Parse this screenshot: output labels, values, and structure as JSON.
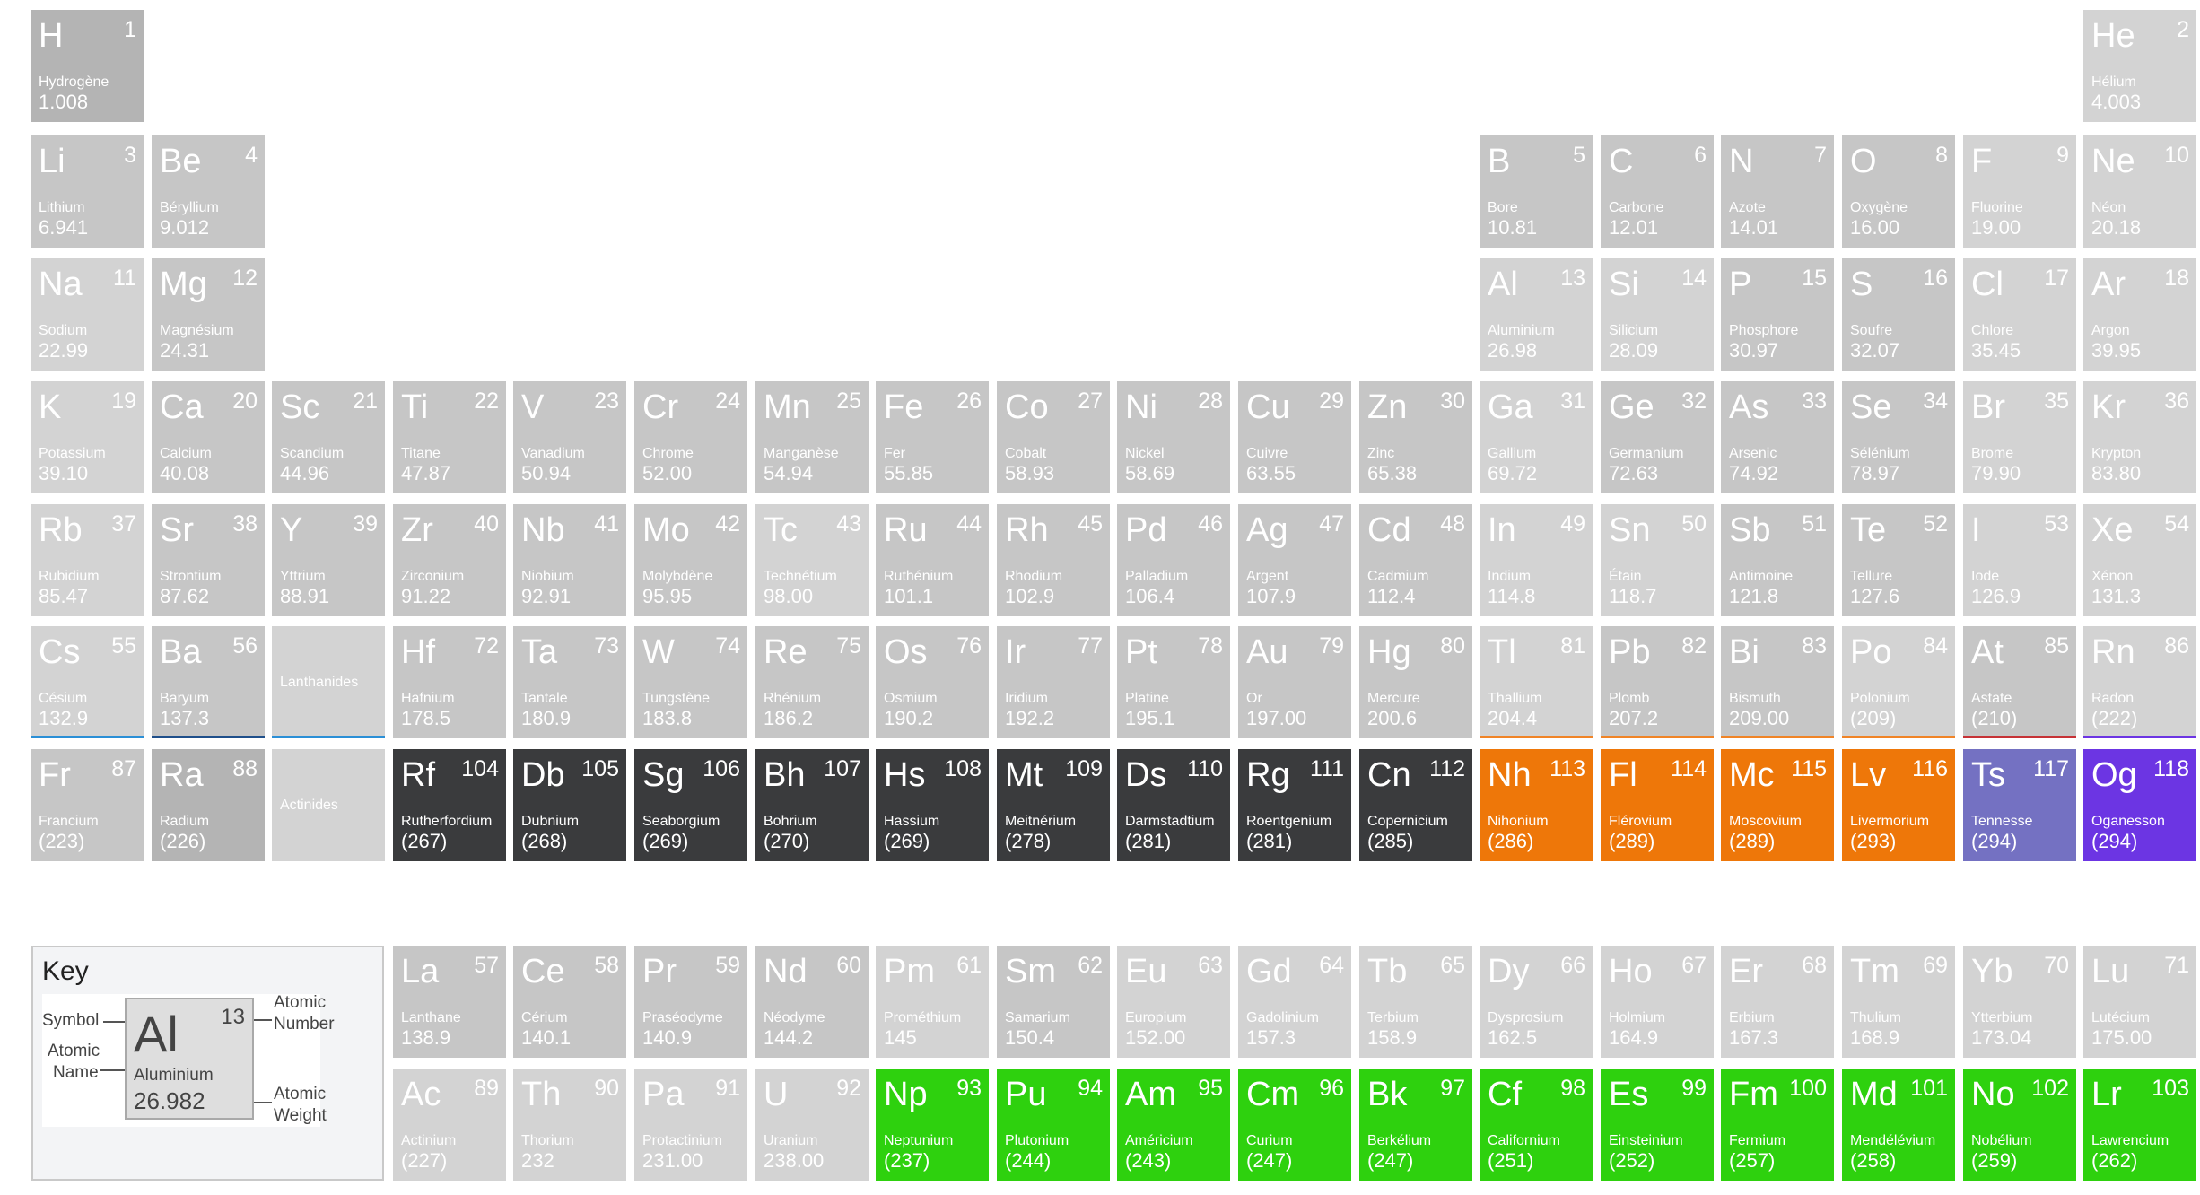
{
  "colors": {
    "cell_light": "#d3d3d3",
    "cell_mid": "#c6c6c6",
    "cell_dark": "#b4b4b4",
    "superheavy": "#3a3b3d",
    "nihonium_group": "#ee7709",
    "tennessine": "#7471c2",
    "oganesson": "#6c35e3",
    "actinide_green": "#2ed10e",
    "underline_blue": "#2b8fd6",
    "underline_navy": "#1f4f8a",
    "underline_orange": "#f08427",
    "underline_red": "#c63236",
    "underline_purple": "#6c35e3"
  },
  "series_labels": {
    "lanthanides": "Lanthanides",
    "actinides": "Actinides"
  },
  "elements": [
    {
      "n": 1,
      "s": "H",
      "name": "Hydrogène",
      "w": "1.008",
      "col": 1,
      "row": 1,
      "style": "dark"
    },
    {
      "n": 2,
      "s": "He",
      "name": "Hélium",
      "w": "4.003",
      "col": 18,
      "row": 1,
      "style": "light"
    },
    {
      "n": 3,
      "s": "Li",
      "name": "Lithium",
      "w": "6.941",
      "col": 1,
      "row": 2,
      "style": "mid"
    },
    {
      "n": 4,
      "s": "Be",
      "name": "Béryllium",
      "w": "9.012",
      "col": 2,
      "row": 2,
      "style": "mid"
    },
    {
      "n": 5,
      "s": "B",
      "name": "Bore",
      "w": "10.81",
      "col": 13,
      "row": 2,
      "style": "mid"
    },
    {
      "n": 6,
      "s": "C",
      "name": "Carbone",
      "w": "12.01",
      "col": 14,
      "row": 2,
      "style": "mid"
    },
    {
      "n": 7,
      "s": "N",
      "name": "Azote",
      "w": "14.01",
      "col": 15,
      "row": 2,
      "style": "mid"
    },
    {
      "n": 8,
      "s": "O",
      "name": "Oxygène",
      "w": "16.00",
      "col": 16,
      "row": 2,
      "style": "mid"
    },
    {
      "n": 9,
      "s": "F",
      "name": "Fluorine",
      "w": "19.00",
      "col": 17,
      "row": 2,
      "style": "light"
    },
    {
      "n": 10,
      "s": "Ne",
      "name": "Néon",
      "w": "20.18",
      "col": 18,
      "row": 2,
      "style": "light"
    },
    {
      "n": 11,
      "s": "Na",
      "name": "Sodium",
      "w": "22.99",
      "col": 1,
      "row": 3,
      "style": "light"
    },
    {
      "n": 12,
      "s": "Mg",
      "name": "Magnésium",
      "w": "24.31",
      "col": 2,
      "row": 3,
      "style": "mid"
    },
    {
      "n": 13,
      "s": "Al",
      "name": "Aluminium",
      "w": "26.98",
      "col": 13,
      "row": 3,
      "style": "light"
    },
    {
      "n": 14,
      "s": "Si",
      "name": "Silicium",
      "w": "28.09",
      "col": 14,
      "row": 3,
      "style": "light"
    },
    {
      "n": 15,
      "s": "P",
      "name": "Phosphore",
      "w": "30.97",
      "col": 15,
      "row": 3,
      "style": "mid"
    },
    {
      "n": 16,
      "s": "S",
      "name": "Soufre",
      "w": "32.07",
      "col": 16,
      "row": 3,
      "style": "mid"
    },
    {
      "n": 17,
      "s": "Cl",
      "name": "Chlore",
      "w": "35.45",
      "col": 17,
      "row": 3,
      "style": "light"
    },
    {
      "n": 18,
      "s": "Ar",
      "name": "Argon",
      "w": "39.95",
      "col": 18,
      "row": 3,
      "style": "light"
    },
    {
      "n": 19,
      "s": "K",
      "name": "Potassium",
      "w": "39.10",
      "col": 1,
      "row": 4,
      "style": "light"
    },
    {
      "n": 20,
      "s": "Ca",
      "name": "Calcium",
      "w": "40.08",
      "col": 2,
      "row": 4,
      "style": "mid"
    },
    {
      "n": 21,
      "s": "Sc",
      "name": "Scandium",
      "w": "44.96",
      "col": 3,
      "row": 4,
      "style": "mid"
    },
    {
      "n": 22,
      "s": "Ti",
      "name": "Titane",
      "w": "47.87",
      "col": 4,
      "row": 4,
      "style": "mid"
    },
    {
      "n": 23,
      "s": "V",
      "name": "Vanadium",
      "w": "50.94",
      "col": 5,
      "row": 4,
      "style": "mid"
    },
    {
      "n": 24,
      "s": "Cr",
      "name": "Chrome",
      "w": "52.00",
      "col": 6,
      "row": 4,
      "style": "mid"
    },
    {
      "n": 25,
      "s": "Mn",
      "name": "Manganèse",
      "w": "54.94",
      "col": 7,
      "row": 4,
      "style": "mid"
    },
    {
      "n": 26,
      "s": "Fe",
      "name": "Fer",
      "w": "55.85",
      "col": 8,
      "row": 4,
      "style": "mid"
    },
    {
      "n": 27,
      "s": "Co",
      "name": "Cobalt",
      "w": "58.93",
      "col": 9,
      "row": 4,
      "style": "mid"
    },
    {
      "n": 28,
      "s": "Ni",
      "name": "Nickel",
      "w": "58.69",
      "col": 10,
      "row": 4,
      "style": "mid"
    },
    {
      "n": 29,
      "s": "Cu",
      "name": "Cuivre",
      "w": "63.55",
      "col": 11,
      "row": 4,
      "style": "mid"
    },
    {
      "n": 30,
      "s": "Zn",
      "name": "Zinc",
      "w": "65.38",
      "col": 12,
      "row": 4,
      "style": "mid"
    },
    {
      "n": 31,
      "s": "Ga",
      "name": "Gallium",
      "w": "69.72",
      "col": 13,
      "row": 4,
      "style": "light"
    },
    {
      "n": 32,
      "s": "Ge",
      "name": "Germanium",
      "w": "72.63",
      "col": 14,
      "row": 4,
      "style": "mid"
    },
    {
      "n": 33,
      "s": "As",
      "name": "Arsenic",
      "w": "74.92",
      "col": 15,
      "row": 4,
      "style": "mid"
    },
    {
      "n": 34,
      "s": "Se",
      "name": "Sélénium",
      "w": "78.97",
      "col": 16,
      "row": 4,
      "style": "mid"
    },
    {
      "n": 35,
      "s": "Br",
      "name": "Brome",
      "w": "79.90",
      "col": 17,
      "row": 4,
      "style": "light"
    },
    {
      "n": 36,
      "s": "Kr",
      "name": "Krypton",
      "w": "83.80",
      "col": 18,
      "row": 4,
      "style": "light"
    },
    {
      "n": 37,
      "s": "Rb",
      "name": "Rubidium",
      "w": "85.47",
      "col": 1,
      "row": 5,
      "style": "light"
    },
    {
      "n": 38,
      "s": "Sr",
      "name": "Strontium",
      "w": "87.62",
      "col": 2,
      "row": 5,
      "style": "mid"
    },
    {
      "n": 39,
      "s": "Y",
      "name": "Yttrium",
      "w": "88.91",
      "col": 3,
      "row": 5,
      "style": "mid"
    },
    {
      "n": 40,
      "s": "Zr",
      "name": "Zirconium",
      "w": "91.22",
      "col": 4,
      "row": 5,
      "style": "mid"
    },
    {
      "n": 41,
      "s": "Nb",
      "name": "Niobium",
      "w": "92.91",
      "col": 5,
      "row": 5,
      "style": "mid"
    },
    {
      "n": 42,
      "s": "Mo",
      "name": "Molybdène",
      "w": "95.95",
      "col": 6,
      "row": 5,
      "style": "mid"
    },
    {
      "n": 43,
      "s": "Tc",
      "name": "Technétium",
      "w": "98.00",
      "col": 7,
      "row": 5,
      "style": "light"
    },
    {
      "n": 44,
      "s": "Ru",
      "name": "Ruthénium",
      "w": "101.1",
      "col": 8,
      "row": 5,
      "style": "mid"
    },
    {
      "n": 45,
      "s": "Rh",
      "name": "Rhodium",
      "w": "102.9",
      "col": 9,
      "row": 5,
      "style": "mid"
    },
    {
      "n": 46,
      "s": "Pd",
      "name": "Palladium",
      "w": "106.4",
      "col": 10,
      "row": 5,
      "style": "mid"
    },
    {
      "n": 47,
      "s": "Ag",
      "name": "Argent",
      "w": "107.9",
      "col": 11,
      "row": 5,
      "style": "mid"
    },
    {
      "n": 48,
      "s": "Cd",
      "name": "Cadmium",
      "w": "112.4",
      "col": 12,
      "row": 5,
      "style": "mid"
    },
    {
      "n": 49,
      "s": "In",
      "name": "Indium",
      "w": "114.8",
      "col": 13,
      "row": 5,
      "style": "light"
    },
    {
      "n": 50,
      "s": "Sn",
      "name": "Étain",
      "w": "118.7",
      "col": 14,
      "row": 5,
      "style": "light"
    },
    {
      "n": 51,
      "s": "Sb",
      "name": "Antimoine",
      "w": "121.8",
      "col": 15,
      "row": 5,
      "style": "mid"
    },
    {
      "n": 52,
      "s": "Te",
      "name": "Tellure",
      "w": "127.6",
      "col": 16,
      "row": 5,
      "style": "mid"
    },
    {
      "n": 53,
      "s": "I",
      "name": "Iode",
      "w": "126.9",
      "col": 17,
      "row": 5,
      "style": "light"
    },
    {
      "n": 54,
      "s": "Xe",
      "name": "Xénon",
      "w": "131.3",
      "col": 18,
      "row": 5,
      "style": "light"
    },
    {
      "n": 55,
      "s": "Cs",
      "name": "Césium",
      "w": "132.9",
      "col": 1,
      "row": 6,
      "style": "light",
      "ul": "underline_blue"
    },
    {
      "n": 56,
      "s": "Ba",
      "name": "Baryum",
      "w": "137.3",
      "col": 2,
      "row": 6,
      "style": "mid",
      "ul": "underline_navy"
    },
    {
      "n": 72,
      "s": "Hf",
      "name": "Hafnium",
      "w": "178.5",
      "col": 4,
      "row": 6,
      "style": "mid"
    },
    {
      "n": 73,
      "s": "Ta",
      "name": "Tantale",
      "w": "180.9",
      "col": 5,
      "row": 6,
      "style": "mid"
    },
    {
      "n": 74,
      "s": "W",
      "name": "Tungstène",
      "w": "183.8",
      "col": 6,
      "row": 6,
      "style": "mid"
    },
    {
      "n": 75,
      "s": "Re",
      "name": "Rhénium",
      "w": "186.2",
      "col": 7,
      "row": 6,
      "style": "mid"
    },
    {
      "n": 76,
      "s": "Os",
      "name": "Osmium",
      "w": "190.2",
      "col": 8,
      "row": 6,
      "style": "mid"
    },
    {
      "n": 77,
      "s": "Ir",
      "name": "Iridium",
      "w": "192.2",
      "col": 9,
      "row": 6,
      "style": "mid"
    },
    {
      "n": 78,
      "s": "Pt",
      "name": "Platine",
      "w": "195.1",
      "col": 10,
      "row": 6,
      "style": "mid"
    },
    {
      "n": 79,
      "s": "Au",
      "name": "Or",
      "w": "197.00",
      "col": 11,
      "row": 6,
      "style": "mid"
    },
    {
      "n": 80,
      "s": "Hg",
      "name": "Mercure",
      "w": "200.6",
      "col": 12,
      "row": 6,
      "style": "mid"
    },
    {
      "n": 81,
      "s": "Tl",
      "name": "Thallium",
      "w": "204.4",
      "col": 13,
      "row": 6,
      "style": "light",
      "ul": "underline_orange"
    },
    {
      "n": 82,
      "s": "Pb",
      "name": "Plomb",
      "w": "207.2",
      "col": 14,
      "row": 6,
      "style": "mid",
      "ul": "underline_orange"
    },
    {
      "n": 83,
      "s": "Bi",
      "name": "Bismuth",
      "w": "209.00",
      "col": 15,
      "row": 6,
      "style": "mid",
      "ul": "underline_orange"
    },
    {
      "n": 84,
      "s": "Po",
      "name": "Polonium",
      "w": "(209)",
      "col": 16,
      "row": 6,
      "style": "light",
      "ul": "underline_orange"
    },
    {
      "n": 85,
      "s": "At",
      "name": "Astate",
      "w": "(210)",
      "col": 17,
      "row": 6,
      "style": "mid",
      "ul": "underline_red"
    },
    {
      "n": 86,
      "s": "Rn",
      "name": "Radon",
      "w": "(222)",
      "col": 18,
      "row": 6,
      "style": "light",
      "ul": "underline_purple"
    },
    {
      "n": 87,
      "s": "Fr",
      "name": "Francium",
      "w": "(223)",
      "col": 1,
      "row": 7,
      "style": "mid"
    },
    {
      "n": 88,
      "s": "Ra",
      "name": "Radium",
      "w": "(226)",
      "col": 2,
      "row": 7,
      "style": "dark"
    },
    {
      "n": 104,
      "s": "Rf",
      "name": "Rutherfordium",
      "w": "(267)",
      "col": 4,
      "row": 7,
      "style": "superheavy"
    },
    {
      "n": 105,
      "s": "Db",
      "name": "Dubnium",
      "w": "(268)",
      "col": 5,
      "row": 7,
      "style": "superheavy"
    },
    {
      "n": 106,
      "s": "Sg",
      "name": "Seaborgium",
      "w": "(269)",
      "col": 6,
      "row": 7,
      "style": "superheavy"
    },
    {
      "n": 107,
      "s": "Bh",
      "name": "Bohrium",
      "w": "(270)",
      "col": 7,
      "row": 7,
      "style": "superheavy"
    },
    {
      "n": 108,
      "s": "Hs",
      "name": "Hassium",
      "w": "(269)",
      "col": 8,
      "row": 7,
      "style": "superheavy"
    },
    {
      "n": 109,
      "s": "Mt",
      "name": "Meitnérium",
      "w": "(278)",
      "col": 9,
      "row": 7,
      "style": "superheavy"
    },
    {
      "n": 110,
      "s": "Ds",
      "name": "Darmstadtium",
      "w": "(281)",
      "col": 10,
      "row": 7,
      "style": "superheavy"
    },
    {
      "n": 111,
      "s": "Rg",
      "name": "Roentgenium",
      "w": "(281)",
      "col": 11,
      "row": 7,
      "style": "superheavy"
    },
    {
      "n": 112,
      "s": "Cn",
      "name": "Copernicium",
      "w": "(285)",
      "col": 12,
      "row": 7,
      "style": "superheavy"
    },
    {
      "n": 113,
      "s": "Nh",
      "name": "Nihonium",
      "w": "(286)",
      "col": 13,
      "row": 7,
      "style": "nihonium_group"
    },
    {
      "n": 114,
      "s": "Fl",
      "name": "Flérovium",
      "w": "(289)",
      "col": 14,
      "row": 7,
      "style": "nihonium_group"
    },
    {
      "n": 115,
      "s": "Mc",
      "name": "Moscovium",
      "w": "(289)",
      "col": 15,
      "row": 7,
      "style": "nihonium_group"
    },
    {
      "n": 116,
      "s": "Lv",
      "name": "Livermorium",
      "w": "(293)",
      "col": 16,
      "row": 7,
      "style": "nihonium_group"
    },
    {
      "n": 117,
      "s": "Ts",
      "name": "Tennesse",
      "w": "(294)",
      "col": 17,
      "row": 7,
      "style": "tennessine"
    },
    {
      "n": 118,
      "s": "Og",
      "name": "Oganesson",
      "w": "(294)",
      "col": 18,
      "row": 7,
      "style": "oganesson"
    },
    {
      "n": 57,
      "s": "La",
      "name": "Lanthane",
      "w": "138.9",
      "col": 4,
      "row": 9,
      "style": "mid"
    },
    {
      "n": 58,
      "s": "Ce",
      "name": "Cérium",
      "w": "140.1",
      "col": 5,
      "row": 9,
      "style": "mid"
    },
    {
      "n": 59,
      "s": "Pr",
      "name": "Praséodyme",
      "w": "140.9",
      "col": 6,
      "row": 9,
      "style": "mid"
    },
    {
      "n": 60,
      "s": "Nd",
      "name": "Néodyme",
      "w": "144.2",
      "col": 7,
      "row": 9,
      "style": "mid"
    },
    {
      "n": 61,
      "s": "Pm",
      "name": "Prométhium",
      "w": "145",
      "col": 8,
      "row": 9,
      "style": "light"
    },
    {
      "n": 62,
      "s": "Sm",
      "name": "Samarium",
      "w": "150.4",
      "col": 9,
      "row": 9,
      "style": "mid"
    },
    {
      "n": 63,
      "s": "Eu",
      "name": "Europium",
      "w": "152.00",
      "col": 10,
      "row": 9,
      "style": "light"
    },
    {
      "n": 64,
      "s": "Gd",
      "name": "Gadolinium",
      "w": "157.3",
      "col": 11,
      "row": 9,
      "style": "light"
    },
    {
      "n": 65,
      "s": "Tb",
      "name": "Terbium",
      "w": "158.9",
      "col": 12,
      "row": 9,
      "style": "light"
    },
    {
      "n": 66,
      "s": "Dy",
      "name": "Dysprosium",
      "w": "162.5",
      "col": 13,
      "row": 9,
      "style": "light"
    },
    {
      "n": 67,
      "s": "Ho",
      "name": "Holmium",
      "w": "164.9",
      "col": 14,
      "row": 9,
      "style": "light"
    },
    {
      "n": 68,
      "s": "Er",
      "name": "Erbium",
      "w": "167.3",
      "col": 15,
      "row": 9,
      "style": "light"
    },
    {
      "n": 69,
      "s": "Tm",
      "name": "Thulium",
      "w": "168.9",
      "col": 16,
      "row": 9,
      "style": "light"
    },
    {
      "n": 70,
      "s": "Yb",
      "name": "Ytterbium",
      "w": "173.04",
      "col": 17,
      "row": 9,
      "style": "light"
    },
    {
      "n": 71,
      "s": "Lu",
      "name": "Lutécium",
      "w": "175.00",
      "col": 18,
      "row": 9,
      "style": "light"
    },
    {
      "n": 89,
      "s": "Ac",
      "name": "Actinium",
      "w": "(227)",
      "col": 4,
      "row": 10,
      "style": "light"
    },
    {
      "n": 90,
      "s": "Th",
      "name": "Thorium",
      "w": "232",
      "col": 5,
      "row": 10,
      "style": "light"
    },
    {
      "n": 91,
      "s": "Pa",
      "name": "Protactinium",
      "w": "231.00",
      "col": 6,
      "row": 10,
      "style": "light"
    },
    {
      "n": 92,
      "s": "U",
      "name": "Uranium",
      "w": "238.00",
      "col": 7,
      "row": 10,
      "style": "light"
    },
    {
      "n": 93,
      "s": "Np",
      "name": "Neptunium",
      "w": "(237)",
      "col": 8,
      "row": 10,
      "style": "actinide_green"
    },
    {
      "n": 94,
      "s": "Pu",
      "name": "Plutonium",
      "w": "(244)",
      "col": 9,
      "row": 10,
      "style": "actinide_green"
    },
    {
      "n": 95,
      "s": "Am",
      "name": "Américium",
      "w": "(243)",
      "col": 10,
      "row": 10,
      "style": "actinide_green"
    },
    {
      "n": 96,
      "s": "Cm",
      "name": "Curium",
      "w": "(247)",
      "col": 11,
      "row": 10,
      "style": "actinide_green"
    },
    {
      "n": 97,
      "s": "Bk",
      "name": "Berkélium",
      "w": "(247)",
      "col": 12,
      "row": 10,
      "style": "actinide_green"
    },
    {
      "n": 98,
      "s": "Cf",
      "name": "Californium",
      "w": "(251)",
      "col": 13,
      "row": 10,
      "style": "actinide_green"
    },
    {
      "n": 99,
      "s": "Es",
      "name": "Einsteinium",
      "w": "(252)",
      "col": 14,
      "row": 10,
      "style": "actinide_green"
    },
    {
      "n": 100,
      "s": "Fm",
      "name": "Fermium",
      "w": "(257)",
      "col": 15,
      "row": 10,
      "style": "actinide_green"
    },
    {
      "n": 101,
      "s": "Md",
      "name": "Mendélévium",
      "w": "(258)",
      "col": 16,
      "row": 10,
      "style": "actinide_green"
    },
    {
      "n": 102,
      "s": "No",
      "name": "Nobélium",
      "w": "(259)",
      "col": 17,
      "row": 10,
      "style": "actinide_green"
    },
    {
      "n": 103,
      "s": "Lr",
      "name": "Lawrencium",
      "w": "(262)",
      "col": 18,
      "row": 10,
      "style": "actinide_green"
    }
  ],
  "key": {
    "title": "Key",
    "symbol_label": "Symbol",
    "atomic_number_label_1": "Atomic",
    "atomic_number_label_2": "Number",
    "atomic_name_label_1": "Atomic",
    "atomic_name_label_2": "Name",
    "atomic_weight_label_1": "Atomic",
    "atomic_weight_label_2": "Weight",
    "example_symbol": "Al",
    "example_number": "13",
    "example_name": "Aluminium",
    "example_weight": "26.982"
  }
}
